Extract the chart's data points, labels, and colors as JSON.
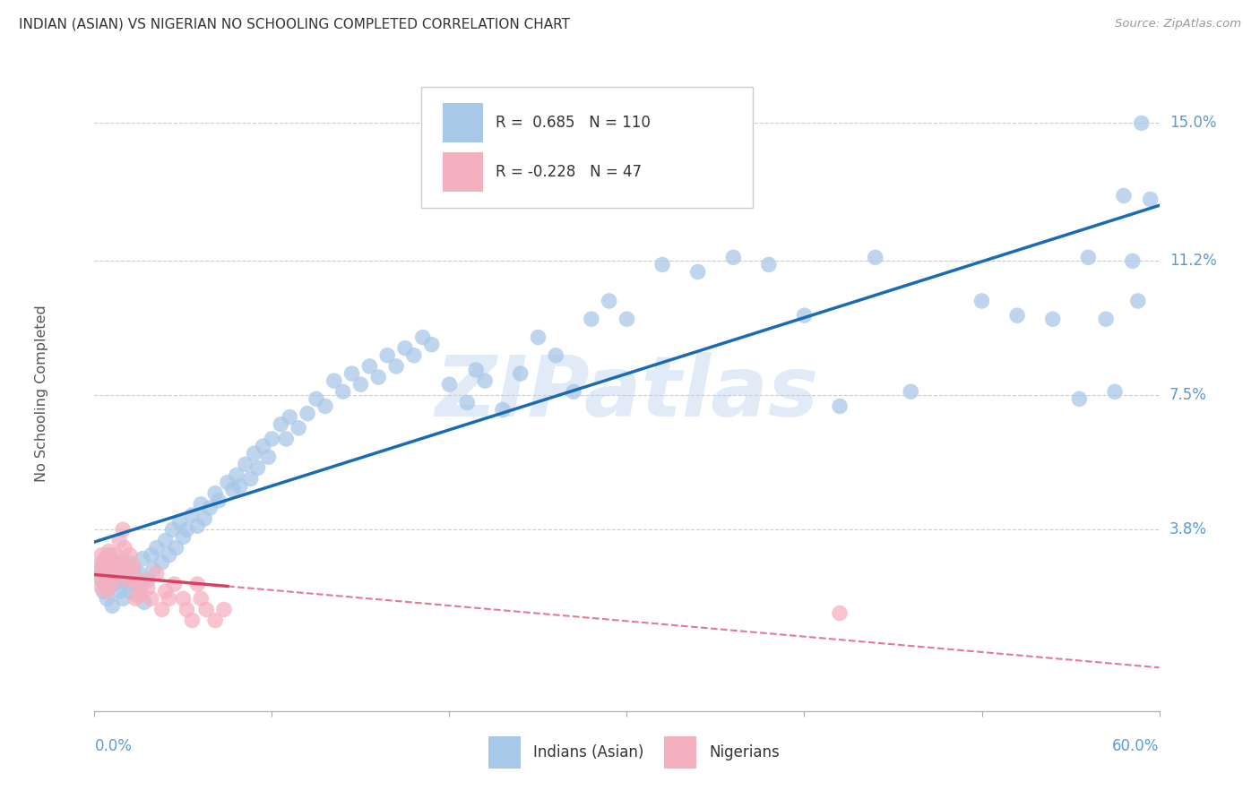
{
  "title": "INDIAN (ASIAN) VS NIGERIAN NO SCHOOLING COMPLETED CORRELATION CHART",
  "source": "Source: ZipAtlas.com",
  "ylabel": "No Schooling Completed",
  "ytick_values": [
    0.0,
    0.038,
    0.075,
    0.112,
    0.15
  ],
  "ytick_labels": [
    "",
    "3.8%",
    "7.5%",
    "11.2%",
    "15.0%"
  ],
  "xlim": [
    0.0,
    0.6
  ],
  "ylim": [
    -0.012,
    0.163
  ],
  "indian_R": "0.685",
  "indian_N": "110",
  "nigerian_R": "-0.228",
  "nigerian_N": "47",
  "indian_color": "#a8c8e8",
  "nigerian_color": "#f5b0c0",
  "indian_line_color": "#1a6bb5",
  "nigerian_line_color": "#d94060",
  "background_color": "#ffffff",
  "watermark": "ZIPatlas",
  "indian_x": [
    0.003,
    0.004,
    0.005,
    0.005,
    0.006,
    0.007,
    0.007,
    0.008,
    0.008,
    0.009,
    0.01,
    0.01,
    0.011,
    0.012,
    0.013,
    0.014,
    0.015,
    0.016,
    0.017,
    0.018,
    0.019,
    0.02,
    0.022,
    0.023,
    0.024,
    0.025,
    0.026,
    0.027,
    0.028,
    0.03,
    0.032,
    0.033,
    0.035,
    0.038,
    0.04,
    0.042,
    0.044,
    0.046,
    0.048,
    0.05,
    0.052,
    0.055,
    0.058,
    0.06,
    0.062,
    0.065,
    0.068,
    0.07,
    0.075,
    0.078,
    0.08,
    0.082,
    0.085,
    0.088,
    0.09,
    0.092,
    0.095,
    0.098,
    0.1,
    0.105,
    0.108,
    0.11,
    0.115,
    0.12,
    0.125,
    0.13,
    0.135,
    0.14,
    0.145,
    0.15,
    0.155,
    0.16,
    0.165,
    0.17,
    0.175,
    0.18,
    0.185,
    0.19,
    0.2,
    0.21,
    0.215,
    0.22,
    0.23,
    0.24,
    0.25,
    0.26,
    0.27,
    0.28,
    0.29,
    0.3,
    0.32,
    0.34,
    0.36,
    0.38,
    0.4,
    0.42,
    0.44,
    0.46,
    0.5,
    0.52,
    0.54,
    0.555,
    0.56,
    0.57,
    0.575,
    0.58,
    0.585,
    0.588,
    0.59,
    0.595
  ],
  "indian_y": [
    0.027,
    0.024,
    0.021,
    0.029,
    0.023,
    0.019,
    0.026,
    0.022,
    0.031,
    0.025,
    0.017,
    0.028,
    0.023,
    0.029,
    0.024,
    0.021,
    0.027,
    0.019,
    0.025,
    0.023,
    0.029,
    0.021,
    0.027,
    0.023,
    0.02,
    0.026,
    0.022,
    0.03,
    0.018,
    0.024,
    0.031,
    0.027,
    0.033,
    0.029,
    0.035,
    0.031,
    0.038,
    0.033,
    0.04,
    0.036,
    0.038,
    0.042,
    0.039,
    0.045,
    0.041,
    0.044,
    0.048,
    0.046,
    0.051,
    0.049,
    0.053,
    0.05,
    0.056,
    0.052,
    0.059,
    0.055,
    0.061,
    0.058,
    0.063,
    0.067,
    0.063,
    0.069,
    0.066,
    0.07,
    0.074,
    0.072,
    0.079,
    0.076,
    0.081,
    0.078,
    0.083,
    0.08,
    0.086,
    0.083,
    0.088,
    0.086,
    0.091,
    0.089,
    0.078,
    0.073,
    0.082,
    0.079,
    0.071,
    0.081,
    0.091,
    0.086,
    0.076,
    0.096,
    0.101,
    0.096,
    0.111,
    0.109,
    0.113,
    0.111,
    0.097,
    0.072,
    0.113,
    0.076,
    0.101,
    0.097,
    0.096,
    0.074,
    0.113,
    0.096,
    0.076,
    0.13,
    0.112,
    0.101,
    0.15,
    0.129
  ],
  "nigerian_x": [
    0.002,
    0.003,
    0.004,
    0.004,
    0.005,
    0.005,
    0.006,
    0.006,
    0.007,
    0.007,
    0.008,
    0.008,
    0.009,
    0.01,
    0.01,
    0.011,
    0.012,
    0.013,
    0.014,
    0.015,
    0.016,
    0.017,
    0.018,
    0.019,
    0.02,
    0.021,
    0.022,
    0.023,
    0.024,
    0.026,
    0.028,
    0.03,
    0.032,
    0.035,
    0.038,
    0.04,
    0.042,
    0.045,
    0.05,
    0.052,
    0.055,
    0.058,
    0.06,
    0.063,
    0.068,
    0.073,
    0.42
  ],
  "nigerian_y": [
    0.028,
    0.025,
    0.022,
    0.031,
    0.026,
    0.029,
    0.023,
    0.03,
    0.021,
    0.029,
    0.025,
    0.032,
    0.026,
    0.03,
    0.023,
    0.027,
    0.031,
    0.025,
    0.035,
    0.029,
    0.038,
    0.033,
    0.028,
    0.024,
    0.031,
    0.026,
    0.028,
    0.019,
    0.023,
    0.02,
    0.024,
    0.022,
    0.019,
    0.026,
    0.016,
    0.021,
    0.019,
    0.023,
    0.019,
    0.016,
    0.013,
    0.023,
    0.019,
    0.016,
    0.013,
    0.016,
    0.015
  ]
}
